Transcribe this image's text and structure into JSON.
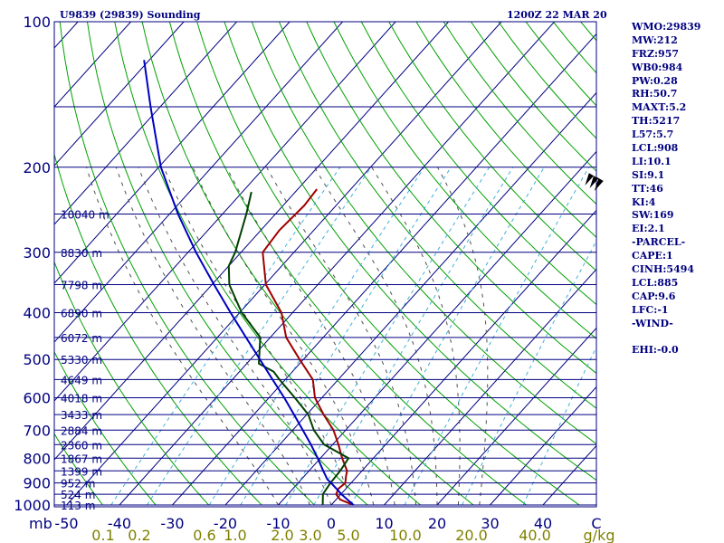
{
  "header": {
    "station": "U9839 (29839) Sounding",
    "time": "1200Z 22 MAR 20"
  },
  "index_panel": [
    "WMO:29839",
    "MW:212",
    "FRZ:957",
    "WB0:984",
    "PW:0.28",
    "RH:50.7",
    "MAXT:5.2",
    "TH:5217",
    "L57:5.7",
    "LCL:908",
    "LI:10.1",
    "SI:9.1",
    "TT:46",
    "KI:4",
    "SW:169",
    "EI:2.1",
    "-PARCEL-",
    "CAPE:1",
    "CINH:5494",
    "LCL:885",
    "CAP:9.6",
    "LFC:-1",
    "-WIND-",
    "",
    "EHI:-0.0"
  ],
  "chart_data": {
    "type": "line",
    "title": "U9839 (29839) Sounding",
    "subtitle": "1200Z 22 MAR 20",
    "y_axis": {
      "label": "mb",
      "scale": "log",
      "range": [
        1000,
        100
      ],
      "ticks": [
        100,
        200,
        300,
        400,
        500,
        600,
        700,
        800,
        900,
        1000
      ]
    },
    "x_axis": {
      "label": "C",
      "range": [
        -50,
        50
      ],
      "ticks": [
        -50,
        -40,
        -30,
        -20,
        -10,
        0,
        10,
        20,
        30,
        40
      ],
      "tick_labels": [
        "-50",
        "-40",
        "-30",
        "-20",
        "-10",
        "0",
        "10",
        "20",
        "30",
        "40"
      ]
    },
    "isobar_lines": [
      100,
      150,
      200,
      250,
      300,
      350,
      400,
      450,
      500,
      550,
      600,
      650,
      700,
      750,
      800,
      850,
      900,
      950,
      1000
    ],
    "height_labels": [
      {
        "p": 250,
        "label": "10040 m"
      },
      {
        "p": 300,
        "label": "8830 m"
      },
      {
        "p": 350,
        "label": "7798 m"
      },
      {
        "p": 400,
        "label": "6890 m"
      },
      {
        "p": 450,
        "label": "6072 m"
      },
      {
        "p": 500,
        "label": "5330 m"
      },
      {
        "p": 550,
        "label": "4649 m"
      },
      {
        "p": 600,
        "label": "4018 m"
      },
      {
        "p": 650,
        "label": "3433 m"
      },
      {
        "p": 700,
        "label": "2884 m"
      },
      {
        "p": 750,
        "label": "2360 m"
      },
      {
        "p": 800,
        "label": "1867 m"
      },
      {
        "p": 850,
        "label": "1399 m"
      },
      {
        "p": 900,
        "label": "952 m"
      },
      {
        "p": 950,
        "label": "524 m"
      },
      {
        "p": 1000,
        "label": "113 m"
      }
    ],
    "mixing_ratio_labels": [
      "0.1",
      "0.2",
      "0.6",
      "1.0",
      "2.0",
      "3.0",
      "5.0",
      "10.0",
      "20.0",
      "40.0",
      "g/kg"
    ],
    "series": [
      {
        "name": "Temperature",
        "color": "#a00000",
        "points": [
          {
            "p": 1000,
            "t": 4.2
          },
          {
            "p": 975,
            "t": 0.8
          },
          {
            "p": 950,
            "t": -0.9
          },
          {
            "p": 925,
            "t": -1.4
          },
          {
            "p": 900,
            "t": -1.1
          },
          {
            "p": 875,
            "t": -2.0
          },
          {
            "p": 850,
            "t": -2.8
          },
          {
            "p": 800,
            "t": -5.9
          },
          {
            "p": 750,
            "t": -8.9
          },
          {
            "p": 700,
            "t": -12.3
          },
          {
            "p": 650,
            "t": -16.8
          },
          {
            "p": 600,
            "t": -21.3
          },
          {
            "p": 550,
            "t": -24.8
          },
          {
            "p": 500,
            "t": -30.7
          },
          {
            "p": 450,
            "t": -37.0
          },
          {
            "p": 400,
            "t": -42.1
          },
          {
            "p": 350,
            "t": -49.8
          },
          {
            "p": 300,
            "t": -55.9
          },
          {
            "p": 270,
            "t": -56.5
          },
          {
            "p": 240,
            "t": -56.0
          },
          {
            "p": 222,
            "t": -56.4
          }
        ]
      },
      {
        "name": "Dewpoint",
        "color": "#004000",
        "points": [
          {
            "p": 1000,
            "t": -1.6
          },
          {
            "p": 950,
            "t": -3.4
          },
          {
            "p": 900,
            "t": -3.9
          },
          {
            "p": 850,
            "t": -4.1
          },
          {
            "p": 800,
            "t": -4.7
          },
          {
            "p": 750,
            "t": -11.6
          },
          {
            "p": 700,
            "t": -16.0
          },
          {
            "p": 650,
            "t": -19.7
          },
          {
            "p": 600,
            "t": -25.1
          },
          {
            "p": 550,
            "t": -31.1
          },
          {
            "p": 530,
            "t": -33.5
          },
          {
            "p": 510,
            "t": -37.7
          },
          {
            "p": 450,
            "t": -41.9
          },
          {
            "p": 400,
            "t": -49.6
          },
          {
            "p": 350,
            "t": -56.7
          },
          {
            "p": 320,
            "t": -60.0
          },
          {
            "p": 300,
            "t": -61.1
          },
          {
            "p": 250,
            "t": -65.5
          },
          {
            "p": 225,
            "t": -68.3
          }
        ]
      },
      {
        "name": "Parcel",
        "color": "#0000c0",
        "points": [
          {
            "p": 1000,
            "t": 4.2
          },
          {
            "p": 950,
            "t": 0.1
          },
          {
            "p": 900,
            "t": -3.8
          },
          {
            "p": 885,
            "t": -5.1
          },
          {
            "p": 850,
            "t": -7.3
          },
          {
            "p": 800,
            "t": -10.5
          },
          {
            "p": 750,
            "t": -14.1
          },
          {
            "p": 700,
            "t": -18.1
          },
          {
            "p": 650,
            "t": -22.4
          },
          {
            "p": 600,
            "t": -27.1
          },
          {
            "p": 550,
            "t": -32.4
          },
          {
            "p": 500,
            "t": -38.2
          },
          {
            "p": 450,
            "t": -44.6
          },
          {
            "p": 400,
            "t": -51.7
          },
          {
            "p": 350,
            "t": -59.6
          },
          {
            "p": 300,
            "t": -68.5
          },
          {
            "p": 250,
            "t": -78.4
          },
          {
            "p": 200,
            "t": -89.6
          },
          {
            "p": 150,
            "t": -101.8
          },
          {
            "p": 120,
            "t": -111.0
          }
        ]
      }
    ],
    "wind_barbs": [
      {
        "p": 210,
        "direction_deg": 300,
        "speed_kt": 155
      }
    ],
    "background_lines": [
      "isotherms",
      "dry_adiabats",
      "moist_adiabats",
      "mixing_ratio_lines"
    ],
    "grid": true
  },
  "colors": {
    "frame": "#000080",
    "isotherm": "#000080",
    "dry_adiabat": "#00a000",
    "moist_adiabat": "#505050",
    "mixing_ratio": "#40b0d8",
    "temperature": "#a00000",
    "dewpoint": "#004000",
    "parcel": "#0000c0",
    "barb": "#000000"
  }
}
